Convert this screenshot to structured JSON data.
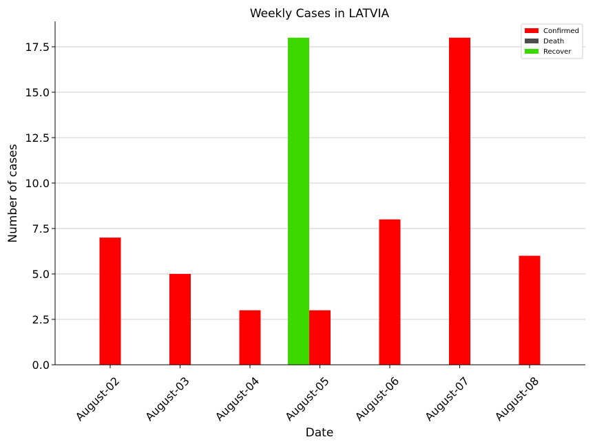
{
  "chart_data": {
    "type": "bar",
    "title": "Weekly Cases in LATVIA",
    "xlabel": "Date",
    "ylabel": "Number of cases",
    "categories": [
      "August-02",
      "August-03",
      "August-04",
      "August-05",
      "August-06",
      "August-07",
      "August-08"
    ],
    "series": [
      {
        "name": "Confirmed",
        "color": "#ff0000",
        "values": [
          7,
          5,
          3,
          3,
          8,
          18,
          6
        ]
      },
      {
        "name": "Death",
        "color": "#4d4d4d",
        "values": [
          0,
          0,
          0,
          0,
          0,
          0,
          0
        ]
      },
      {
        "name": "Recover",
        "color": "#3dd800",
        "values": [
          0,
          0,
          0,
          18,
          0,
          0,
          0
        ]
      }
    ],
    "ylim": [
      0,
      18.9
    ],
    "yticks": [
      0.0,
      2.5,
      5.0,
      7.5,
      10.0,
      12.5,
      15.0,
      17.5
    ],
    "ytick_labels": [
      "0.0",
      "2.5",
      "5.0",
      "7.5",
      "10.0",
      "12.5",
      "15.0",
      "17.5"
    ],
    "grid": "horizontal",
    "legend_position": "top-right"
  }
}
